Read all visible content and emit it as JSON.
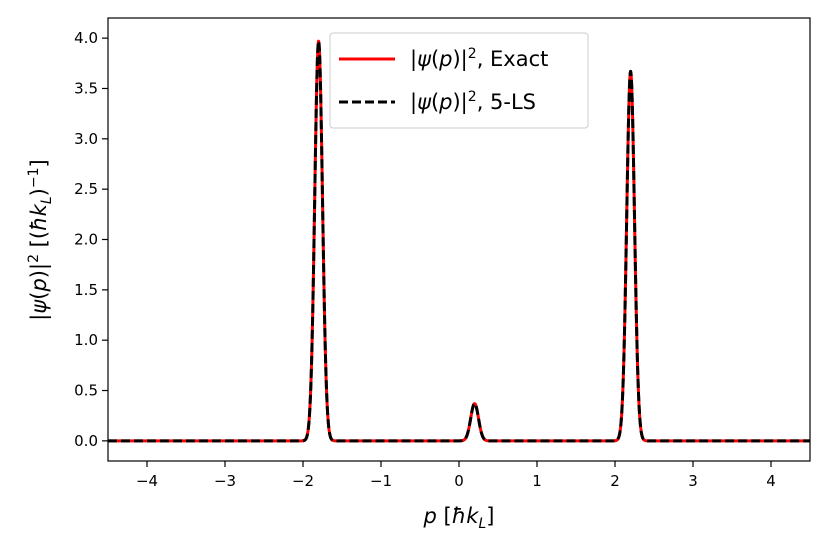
{
  "chart_data": {
    "type": "line",
    "title": "",
    "xlabel": "p [ħk_L]",
    "ylabel": "|ψ(p)|² [(ħk_L)⁻¹]",
    "xlim": [
      -4.5,
      4.5
    ],
    "ylim": [
      -0.2,
      4.2
    ],
    "grid": false,
    "legend_position": "top-center",
    "x_ticks": [
      -4,
      -3,
      -2,
      -1,
      0,
      1,
      2,
      3,
      4
    ],
    "x_tick_labels": [
      "−4",
      "−3",
      "−2",
      "−1",
      "0",
      "1",
      "2",
      "3",
      "4"
    ],
    "y_ticks": [
      0.0,
      0.5,
      1.0,
      1.5,
      2.0,
      2.5,
      3.0,
      3.5,
      4.0
    ],
    "y_tick_labels": [
      "0.0",
      "0.5",
      "1.0",
      "1.5",
      "2.0",
      "2.5",
      "3.0",
      "3.5",
      "4.0"
    ],
    "peaks": [
      {
        "center": -1.8,
        "height": 3.97,
        "width": 0.05
      },
      {
        "center": 0.2,
        "height": 0.37,
        "width": 0.05
      },
      {
        "center": 2.2,
        "height": 3.67,
        "width": 0.05
      }
    ],
    "series": [
      {
        "name": "|ψ(p)|², Exact",
        "color": "#ff0000",
        "style": "solid"
      },
      {
        "name": "|ψ(p)|², 5-LS",
        "color": "#000000",
        "style": "dashed"
      }
    ]
  }
}
